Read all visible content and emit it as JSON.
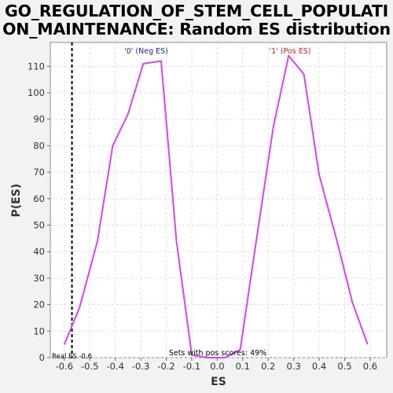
{
  "chart_data": {
    "type": "line",
    "title_lines": [
      "GO_REGULATION_OF_STEM_CELL_POPULATI",
      "ON_MAINTENANCE: Random ES distribution"
    ],
    "xlabel": "ES",
    "ylabel": "P(ES)",
    "xlim": [
      -0.655,
      0.665
    ],
    "ylim": [
      0,
      119
    ],
    "x_ticks": [
      -0.6,
      -0.5,
      -0.4,
      -0.3,
      -0.2,
      -0.1,
      0.0,
      0.1,
      0.2,
      0.3,
      0.4,
      0.5,
      0.6
    ],
    "x_tick_labels": [
      "-0.6",
      "-0.5",
      "-0.4",
      "-0.3",
      "-0.2",
      "-0.1",
      "0.0",
      "0.1",
      "0.2",
      "0.3",
      "0.4",
      "0.5",
      "0.6"
    ],
    "y_ticks": [
      0,
      10,
      20,
      30,
      40,
      50,
      60,
      70,
      80,
      90,
      100,
      110
    ],
    "y_tick_labels": [
      "0",
      "10",
      "20",
      "30",
      "40",
      "50",
      "60",
      "70",
      "80",
      "90",
      "100",
      "110"
    ],
    "grid": true,
    "series": [
      {
        "color": "#e040fb",
        "x": [
          -0.6,
          -0.54,
          -0.47,
          -0.41,
          -0.35,
          -0.29,
          -0.22,
          -0.16,
          -0.1,
          -0.04,
          0.03,
          0.09,
          0.15,
          0.22,
          0.28,
          0.34,
          0.4,
          0.47,
          0.53,
          0.59
        ],
        "y": [
          5,
          19,
          44,
          80,
          92,
          111,
          112,
          44,
          1,
          0,
          0,
          3,
          42,
          87,
          114,
          107,
          69,
          44,
          21,
          5
        ]
      }
    ],
    "real_es": -0.57,
    "annotations": {
      "neg_label": "'0' (Neg ES)",
      "pos_label": "'1' (Pos ES)",
      "sets_text": "Sets with pos scores: 49%",
      "real_es_text": "Real ES -0.6"
    },
    "colors": {
      "neg_label": "#2222cc",
      "pos_label": "#dd2222",
      "background": "#f2f2f2",
      "plot_background": "#ffffff",
      "grid": "#dddddd"
    }
  }
}
